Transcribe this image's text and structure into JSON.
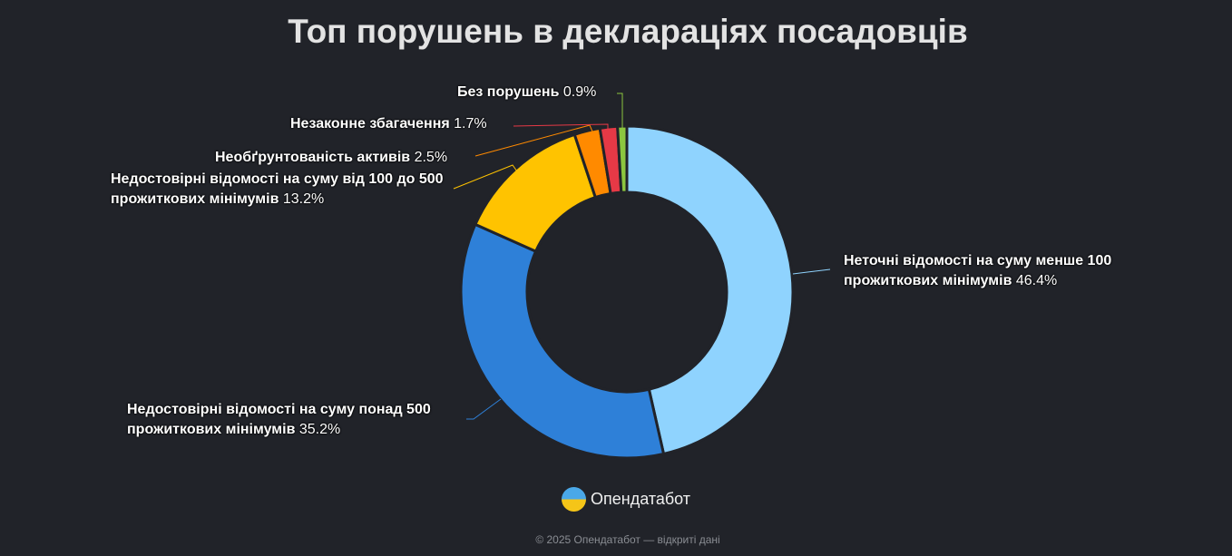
{
  "chart_data": {
    "type": "pie",
    "donut": true,
    "title": "Топ порушень в деклараціях посадовців",
    "slices": [
      {
        "label": "Неточні відомості на суму менше 100 прожиткових мінімумів",
        "value": 46.4,
        "pct_text": "46.4%",
        "color": "#8fd3fe"
      },
      {
        "label": "Недостовірні відомості на суму понад 500 прожиткових мінімумів",
        "value": 35.2,
        "pct_text": "35.2%",
        "color": "#2e80d8"
      },
      {
        "label": "Недостовірні відомості на суму від 100 до 500 прожиткових мінімумів",
        "value": 13.2,
        "pct_text": "13.2%",
        "color": "#ffc300"
      },
      {
        "label": "Необґрунтованість активів",
        "value": 2.5,
        "pct_text": "2.5%",
        "color": "#ff8a00"
      },
      {
        "label": "Незаконне збагачення",
        "value": 1.7,
        "pct_text": "1.7%",
        "color": "#e63946"
      },
      {
        "label": "Без порушень",
        "value": 0.9,
        "pct_text": "0.9%",
        "color": "#8cc63f"
      }
    ]
  },
  "brand": "Опендатабот",
  "footer": "© 2025 Опендатабот — відкриті дані"
}
